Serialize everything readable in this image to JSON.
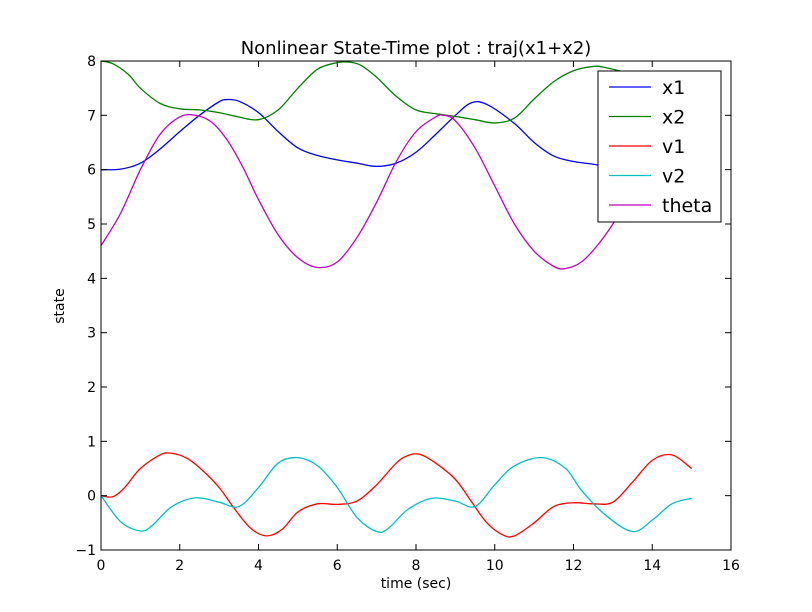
{
  "chart_data": {
    "type": "line",
    "title": "Nonlinear State-Time plot : traj(x1+x2)",
    "xlabel": "time (sec)",
    "ylabel": "state",
    "xlim": [
      0,
      16
    ],
    "ylim": [
      -1,
      8
    ],
    "xticks": [
      0,
      2,
      4,
      6,
      8,
      10,
      12,
      14,
      16
    ],
    "yticks": [
      -1,
      0,
      1,
      2,
      3,
      4,
      5,
      6,
      7,
      8
    ],
    "xtick_labels": [
      "0",
      "2",
      "4",
      "6",
      "8",
      "10",
      "12",
      "14",
      "16"
    ],
    "ytick_labels": [
      "−1",
      "0",
      "1",
      "2",
      "3",
      "4",
      "5",
      "6",
      "7",
      "8"
    ],
    "grid": false,
    "legend_position": "top-right",
    "series": [
      {
        "name": "x1",
        "color": "#0000ff",
        "x": [
          0,
          0.5,
          1.0,
          1.5,
          2.0,
          2.5,
          3.0,
          3.2,
          3.5,
          4.0,
          4.5,
          5.0,
          5.5,
          6.0,
          6.5,
          7.0,
          7.5,
          8.0,
          8.5,
          9.0,
          9.4,
          9.8,
          10.5,
          11.0,
          11.5,
          12.0,
          12.5,
          13.0,
          13.5,
          14.0,
          14.5,
          15.0
        ],
        "y": [
          6.0,
          6.01,
          6.12,
          6.38,
          6.7,
          7.0,
          7.25,
          7.29,
          7.26,
          7.05,
          6.7,
          6.4,
          6.26,
          6.18,
          6.12,
          6.06,
          6.12,
          6.32,
          6.65,
          7.0,
          7.23,
          7.2,
          6.85,
          6.5,
          6.25,
          6.15,
          6.1,
          6.04,
          5.98,
          5.98,
          5.99,
          6.0
        ]
      },
      {
        "name": "x2",
        "color": "#008000",
        "x": [
          0,
          0.3,
          0.7,
          1.0,
          1.5,
          2.0,
          2.5,
          3.0,
          3.5,
          4.0,
          4.5,
          5.0,
          5.5,
          6.0,
          6.3,
          6.6,
          7.0,
          7.5,
          8.0,
          8.5,
          9.0,
          9.5,
          10.0,
          10.5,
          11.0,
          11.5,
          12.0,
          12.5,
          12.8,
          13.5,
          14.0
        ],
        "y": [
          8.0,
          7.95,
          7.75,
          7.5,
          7.22,
          7.12,
          7.1,
          7.05,
          6.97,
          6.92,
          7.1,
          7.5,
          7.85,
          7.97,
          7.98,
          7.92,
          7.7,
          7.35,
          7.1,
          7.03,
          6.98,
          6.92,
          6.86,
          6.95,
          7.3,
          7.62,
          7.82,
          7.9,
          7.88,
          7.75,
          7.6
        ]
      },
      {
        "name": "v1",
        "color": "#ff0000",
        "x": [
          0,
          0.3,
          0.6,
          1.0,
          1.5,
          1.8,
          2.2,
          2.6,
          3.0,
          3.4,
          3.8,
          4.2,
          4.6,
          5.0,
          5.5,
          6.0,
          6.5,
          7.0,
          7.5,
          7.8,
          8.1,
          8.5,
          9.0,
          9.4,
          9.8,
          10.2,
          10.5,
          11.0,
          11.5,
          12.0,
          12.5,
          13.0,
          13.5,
          14.0,
          14.5,
          15.0
        ],
        "y": [
          0.0,
          -0.02,
          0.15,
          0.5,
          0.75,
          0.78,
          0.68,
          0.45,
          0.15,
          -0.25,
          -0.6,
          -0.74,
          -0.62,
          -0.3,
          -0.15,
          -0.16,
          -0.1,
          0.2,
          0.6,
          0.74,
          0.76,
          0.6,
          0.3,
          -0.1,
          -0.5,
          -0.72,
          -0.74,
          -0.5,
          -0.2,
          -0.13,
          -0.15,
          -0.12,
          0.25,
          0.65,
          0.75,
          0.5
        ]
      },
      {
        "name": "v2",
        "color": "#00bfbf",
        "x": [
          0,
          0.5,
          1.0,
          1.3,
          1.8,
          2.4,
          3.0,
          3.5,
          4.0,
          4.5,
          5.0,
          5.5,
          6.0,
          6.5,
          7.0,
          7.3,
          7.8,
          8.4,
          9.0,
          9.5,
          10.0,
          10.5,
          11.2,
          11.8,
          12.2,
          12.8,
          13.5,
          14.0,
          14.5,
          15.0
        ],
        "y": [
          0.0,
          -0.48,
          -0.65,
          -0.55,
          -0.2,
          -0.04,
          -0.12,
          -0.2,
          0.15,
          0.6,
          0.7,
          0.55,
          0.15,
          -0.4,
          -0.66,
          -0.6,
          -0.25,
          -0.05,
          -0.1,
          -0.2,
          0.2,
          0.55,
          0.7,
          0.5,
          0.1,
          -0.35,
          -0.66,
          -0.45,
          -0.15,
          -0.05
        ]
      },
      {
        "name": "theta",
        "color": "#bf00bf",
        "x": [
          0,
          0.5,
          1.0,
          1.5,
          2.0,
          2.4,
          2.8,
          3.2,
          3.6,
          4.0,
          4.5,
          5.0,
          5.5,
          6.0,
          6.5,
          7.0,
          7.5,
          8.0,
          8.5,
          8.7,
          9.0,
          9.5,
          10.0,
          10.5,
          11.0,
          11.5,
          11.8,
          12.2,
          12.6,
          13.0,
          13.5,
          14.0
        ],
        "y": [
          4.6,
          5.2,
          6.0,
          6.65,
          6.97,
          7.0,
          6.88,
          6.55,
          6.05,
          5.45,
          4.8,
          4.38,
          4.2,
          4.3,
          4.75,
          5.4,
          6.15,
          6.7,
          6.97,
          7.0,
          6.9,
          6.4,
          5.7,
          5.0,
          4.5,
          4.22,
          4.18,
          4.3,
          4.6,
          5.0,
          5.6,
          6.2
        ]
      }
    ]
  }
}
